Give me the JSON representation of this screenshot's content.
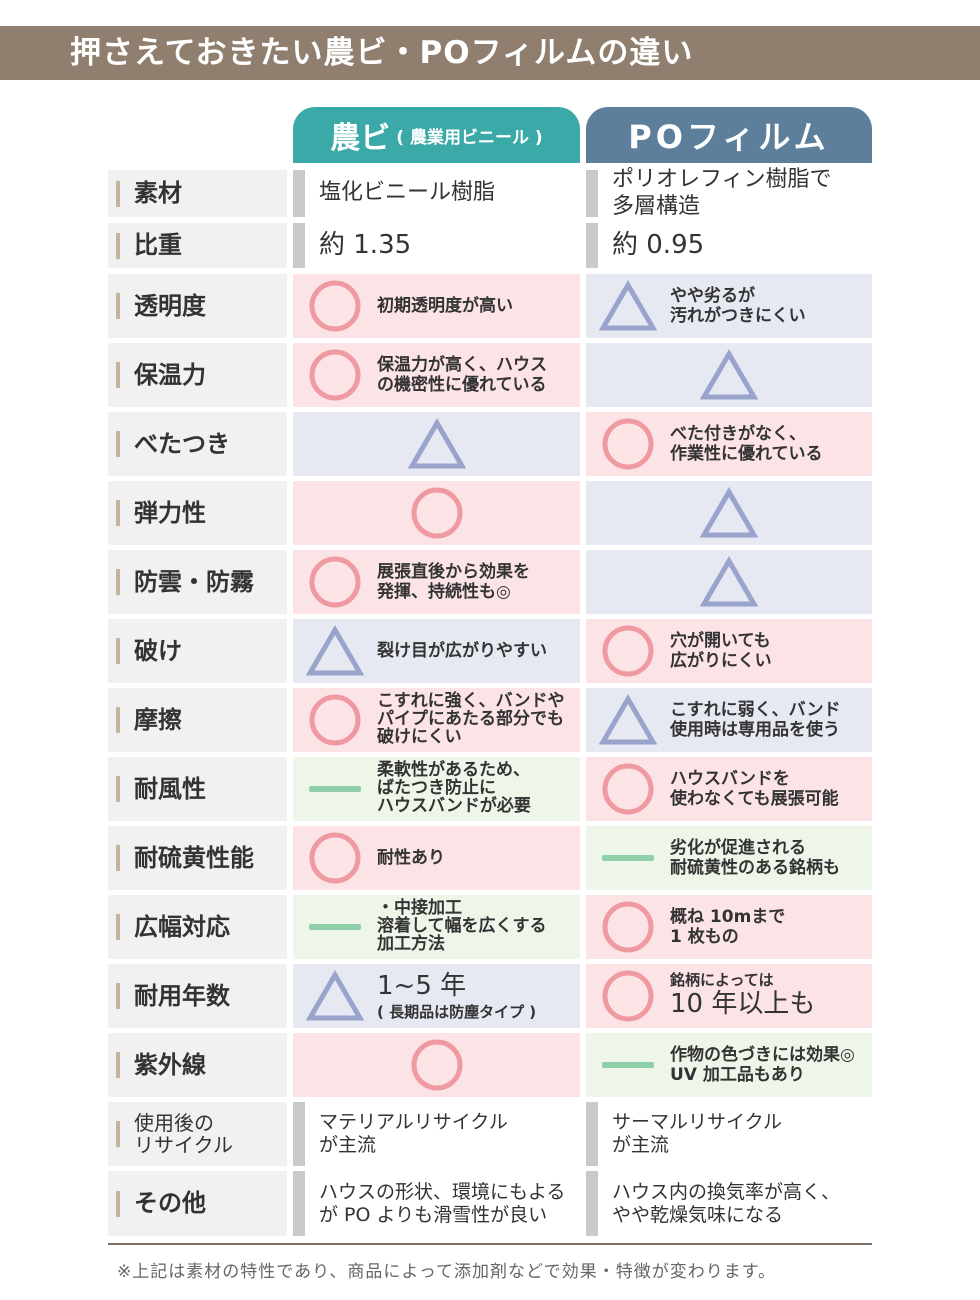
{
  "title": "押さえておきたい農ビ・POフィルムの違い",
  "columns": {
    "nobi": "農ビ",
    "nobi_sub": "( 農業用ビニール )",
    "po": "POフィルム"
  },
  "colors": {
    "title_bar": "#907f6f",
    "nobi_header": "#3aa9a7",
    "po_header": "#5e7f9c",
    "good": "#ef9aa0",
    "fair": "#9aa3cc",
    "neutral": "#8fd0aa"
  },
  "legend_icons": {
    "circle": "good-circle-icon",
    "triangle": "fair-triangle-icon",
    "dash": "neutral-dash-icon"
  },
  "rows": [
    {
      "label": "素材",
      "nobi": {
        "mark": "",
        "lines": [
          "塩化ビニール樹脂"
        ]
      },
      "po": {
        "mark": "",
        "lines": [
          "ポリオレフィン樹脂で",
          "多層構造"
        ]
      }
    },
    {
      "label": "比重",
      "nobi": {
        "mark": "",
        "lines": [
          "約 1.35"
        ]
      },
      "po": {
        "mark": "",
        "lines": [
          "約 0.95"
        ]
      }
    },
    {
      "label": "透明度",
      "nobi": {
        "mark": "circle",
        "lines": [
          "初期透明度が高い"
        ]
      },
      "po": {
        "mark": "triangle",
        "lines": [
          "やや劣るが",
          "汚れがつきにくい"
        ]
      }
    },
    {
      "label": "保温力",
      "nobi": {
        "mark": "circle",
        "lines": [
          "保温力が高く、ハウス",
          "の機密性に優れている"
        ]
      },
      "po": {
        "mark": "triangle",
        "lines": []
      }
    },
    {
      "label": "べたつき",
      "nobi": {
        "mark": "triangle",
        "lines": []
      },
      "po": {
        "mark": "circle",
        "lines": [
          "べた付きがなく、",
          "作業性に優れている"
        ]
      }
    },
    {
      "label": "弾力性",
      "nobi": {
        "mark": "circle",
        "lines": []
      },
      "po": {
        "mark": "triangle",
        "lines": []
      }
    },
    {
      "label": "防雲・防霧",
      "nobi": {
        "mark": "circle",
        "lines": [
          "展張直後から効果を",
          "発揮、持続性も◎"
        ]
      },
      "po": {
        "mark": "triangle",
        "lines": []
      }
    },
    {
      "label": "破け",
      "nobi": {
        "mark": "triangle",
        "lines": [
          "裂け目が広がりやすい"
        ]
      },
      "po": {
        "mark": "circle",
        "lines": [
          "穴が開いても",
          "広がりにくい"
        ]
      }
    },
    {
      "label": "摩擦",
      "nobi": {
        "mark": "circle",
        "lines": [
          "こすれに強く、バンドや",
          "パイプにあたる部分でも",
          "破けにくい"
        ]
      },
      "po": {
        "mark": "triangle",
        "lines": [
          "こすれに弱く、バンド",
          "使用時は専用品を使う"
        ]
      }
    },
    {
      "label": "耐風性",
      "nobi": {
        "mark": "dash",
        "lines": [
          "柔軟性があるため、",
          "ばたつき防止に",
          "ハウスバンドが必要"
        ]
      },
      "po": {
        "mark": "circle",
        "lines": [
          "ハウスバンドを",
          "使わなくても展張可能"
        ]
      }
    },
    {
      "label": "耐硫黄性能",
      "nobi": {
        "mark": "circle",
        "lines": [
          "耐性あり"
        ]
      },
      "po": {
        "mark": "dash",
        "lines": [
          "劣化が促進される",
          "耐硫黄性のある銘柄も"
        ]
      }
    },
    {
      "label": "広幅対応",
      "nobi": {
        "mark": "dash",
        "lines": [
          "・中接加工",
          "溶着して幅を広くする",
          "加工方法"
        ]
      },
      "po": {
        "mark": "circle",
        "lines": [
          "概ね 10mまで",
          "1 枚もの"
        ]
      }
    },
    {
      "label": "耐用年数",
      "nobi": {
        "mark": "triangle",
        "lines": [
          "1~5 年",
          "( 長期品は防塵タイプ )"
        ]
      },
      "po": {
        "mark": "circle",
        "lines": [
          "銘柄によっては",
          "10 年以上も"
        ]
      }
    },
    {
      "label": "紫外線",
      "nobi": {
        "mark": "circle",
        "lines": []
      },
      "po": {
        "mark": "dash",
        "lines": [
          "作物の色づきには効果◎",
          "UV 加工品もあり"
        ]
      }
    },
    {
      "label": "使用後の\nリサイクル",
      "nobi": {
        "mark": "",
        "lines": [
          "マテリアルリサイクル",
          "が主流"
        ]
      },
      "po": {
        "mark": "",
        "lines": [
          "サーマルリサイクル",
          "が主流"
        ]
      }
    },
    {
      "label": "その他",
      "nobi": {
        "mark": "",
        "lines": [
          "ハウスの形状、環境にもよる",
          "が PO よりも滑雪性が良い"
        ]
      },
      "po": {
        "mark": "",
        "lines": [
          "ハウス内の換気率が高く、",
          "やや乾燥気味になる"
        ]
      }
    }
  ],
  "footnote": "※上記は素材の特性であり、商品によって添加剤などで効果・特徴が変わります。"
}
